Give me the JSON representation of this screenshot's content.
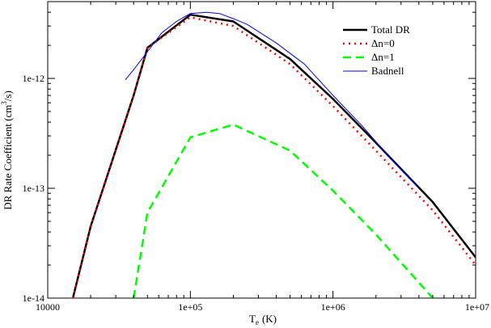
{
  "chart_data": {
    "type": "line",
    "title": "",
    "xlabel": "T",
    "xlabel_sub": "e",
    "xlabel_unit": "(K)",
    "ylabel": "DR Rate Coefficient (cm",
    "ylabel_sup": "3",
    "ylabel_tail": "/s)",
    "xscale": "log",
    "yscale": "log",
    "xlim": [
      10000,
      10000000
    ],
    "ylim": [
      1e-14,
      5e-12
    ],
    "x_ticks": [
      {
        "value": 10000,
        "label": "10000"
      },
      {
        "value": 100000,
        "label": "1e+05"
      },
      {
        "value": 1000000,
        "label": "1e+06"
      },
      {
        "value": 10000000,
        "label": "1e+07"
      }
    ],
    "y_ticks": [
      {
        "value": 1e-14,
        "label": "1e-14"
      },
      {
        "value": 1e-13,
        "label": "1e-13"
      },
      {
        "value": 1e-12,
        "label": "1e-12"
      }
    ],
    "grid": false,
    "legend_position": "top-right",
    "series": [
      {
        "name": "Total DR",
        "color": "#000000",
        "dash": "solid",
        "width": 2.5,
        "x": [
          15000,
          20000,
          40000,
          50000,
          100000,
          200000,
          500000,
          1000000,
          2000000,
          5000000,
          10000000
        ],
        "y": [
          1e-14,
          4.5e-14,
          7e-13,
          1.9e-12,
          3.8e-12,
          3.3e-12,
          1.5e-12,
          6.5e-13,
          2.6e-13,
          7.5e-14,
          2.35e-14
        ]
      },
      {
        "name": "Δn=0",
        "color": "#ff0000",
        "dash": "dotted",
        "width": 2.5,
        "x": [
          15000,
          20000,
          40000,
          50000,
          100000,
          200000,
          500000,
          1000000,
          2000000,
          5000000,
          10000000
        ],
        "y": [
          1e-14,
          4.5e-14,
          7e-13,
          1.9e-12,
          3.6e-12,
          3e-12,
          1.35e-12,
          5.6e-13,
          2.2e-13,
          6.3e-14,
          2e-14
        ]
      },
      {
        "name": "Δn=1",
        "color": "#00ff00",
        "dash": "dashed",
        "width": 2.5,
        "x": [
          40000,
          50000,
          100000,
          200000,
          500000,
          1000000,
          2000000,
          5000000
        ],
        "y": [
          1e-14,
          6e-14,
          2.9e-13,
          3.8e-13,
          2.2e-13,
          9.5e-14,
          3.8e-14,
          1e-14
        ]
      },
      {
        "name": "Badnell",
        "color": "#0000ff",
        "dash": "solid",
        "width": 1,
        "x": [
          35000,
          40000,
          50000,
          63000,
          80000,
          100000,
          130000,
          160000,
          200000,
          250000,
          400000,
          630000,
          1000000,
          1600000,
          2500000,
          4000000
        ],
        "y": [
          9.7e-13,
          1.2e-12,
          1.75e-12,
          2.6e-12,
          3.3e-12,
          3.9e-12,
          4e-12,
          3.9e-12,
          3.5e-12,
          3.1e-12,
          2.1e-12,
          1.35e-12,
          7e-13,
          3.7e-13,
          1.9e-13,
          1e-13
        ]
      }
    ]
  }
}
